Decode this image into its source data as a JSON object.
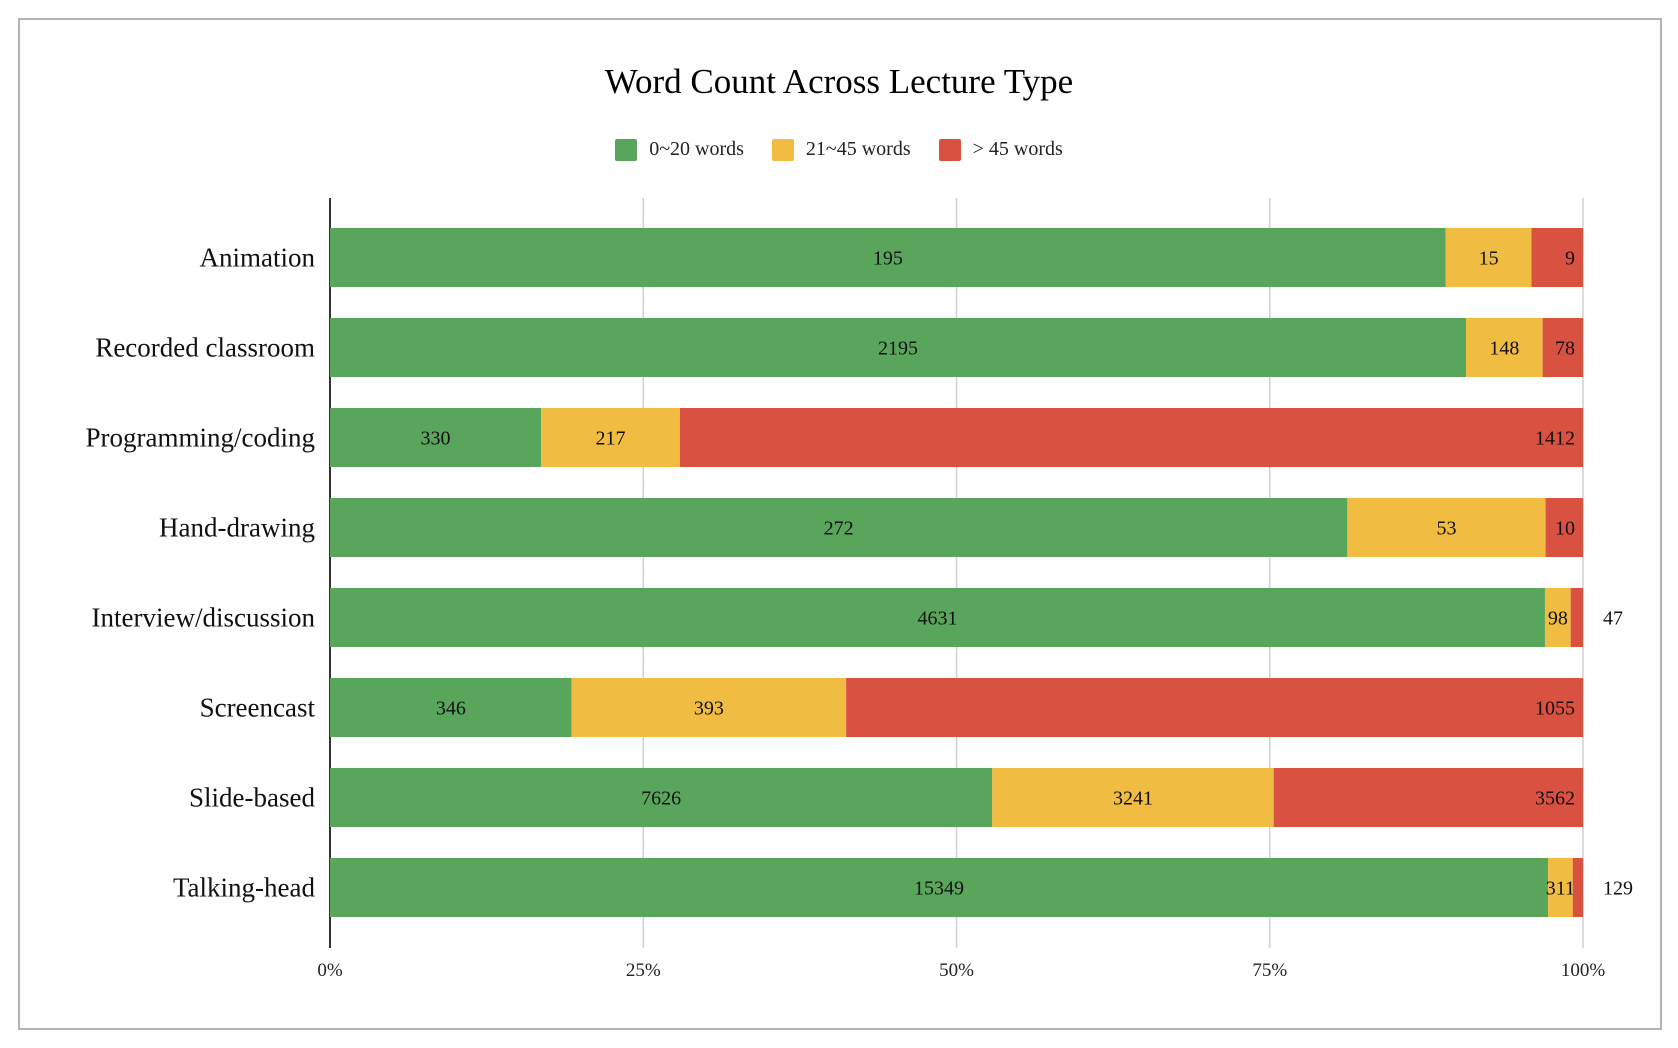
{
  "chart_data": {
    "type": "bar",
    "orientation": "horizontal",
    "stacked": "percent",
    "title": "Word Count Across Lecture Type",
    "xlabel": "",
    "ylabel": "",
    "xlim": [
      0,
      100
    ],
    "x_tick_labels": [
      "0%",
      "25%",
      "50%",
      "75%",
      "100%"
    ],
    "grid": true,
    "legend_position": "top",
    "categories": [
      "Animation",
      "Recorded classroom",
      "Programming/coding",
      "Hand-drawing",
      "Interview/discussion",
      "Screencast",
      "Slide-based",
      "Talking-head"
    ],
    "series": [
      {
        "name": "0~20 words",
        "color": "#5aa55c",
        "values": [
          195,
          2195,
          330,
          272,
          4631,
          346,
          7626,
          15349
        ]
      },
      {
        "name": "21~45 words",
        "color": "#f0bc41",
        "values": [
          15,
          148,
          217,
          53,
          98,
          393,
          3241,
          311
        ]
      },
      {
        "name": "> 45 words",
        "color": "#d95140",
        "values": [
          9,
          78,
          1412,
          10,
          47,
          1055,
          3562,
          129
        ]
      }
    ]
  }
}
